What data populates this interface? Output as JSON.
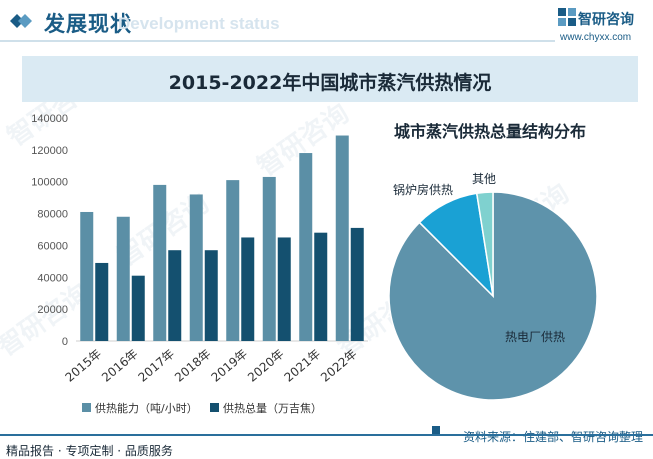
{
  "header": {
    "title": "发展现状",
    "title_en": "Development status",
    "logo_text": "智研咨询",
    "logo_url": "www.chyxx.com"
  },
  "banner_title": "2015-2022年中国城市蒸汽供热情况",
  "watermark": "智研咨询",
  "footer": {
    "left": "精品报告 · 专项定制 · 品质服务",
    "right": "资料来源：住建部、智研咨询整理"
  },
  "colors": {
    "brand": "#1a5c86",
    "capacity": "#5b8fa6",
    "total": "#14506f",
    "pie_heat_plant": "#5e93ab",
    "pie_boiler": "#1aa1d4",
    "pie_other": "#7fd1cf"
  },
  "chart_data": [
    {
      "type": "bar",
      "categories": [
        "2015年",
        "2016年",
        "2017年",
        "2018年",
        "2019年",
        "2020年",
        "2021年",
        "2022年"
      ],
      "series": [
        {
          "name": "供热能力（吨/小时）",
          "values": [
            81000,
            78000,
            98000,
            92000,
            101000,
            103000,
            118000,
            129000
          ]
        },
        {
          "name": "供热总量（万吉焦）",
          "values": [
            49000,
            41000,
            57000,
            57000,
            65000,
            65000,
            68000,
            71000
          ]
        }
      ],
      "ylim": [
        0,
        140000
      ],
      "yticks": [
        0,
        20000,
        40000,
        60000,
        80000,
        100000,
        120000,
        140000
      ],
      "grid": false,
      "legend": "bottom"
    },
    {
      "type": "pie",
      "title": "城市蒸汽供热总量结构分布",
      "slices": [
        {
          "label": "热电厂供热",
          "value": 87.5
        },
        {
          "label": "锅炉房供热",
          "value": 10.0
        },
        {
          "label": "其他",
          "value": 2.5
        }
      ]
    }
  ]
}
